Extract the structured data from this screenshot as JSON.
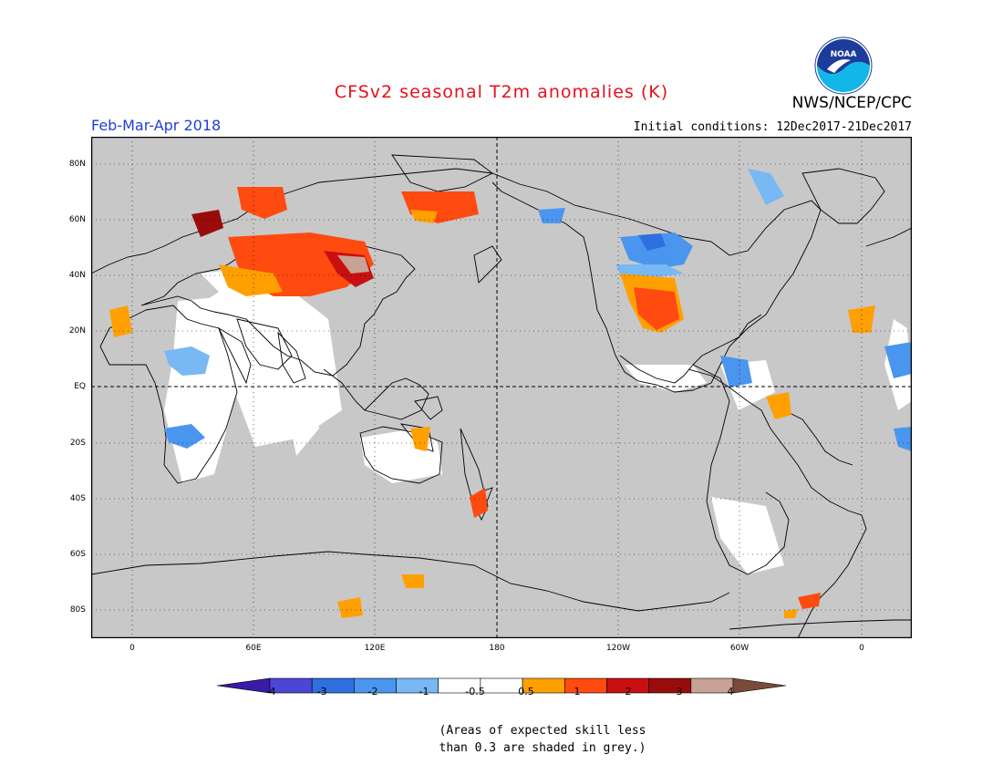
{
  "header": {
    "title": "CFSv2 seasonal T2m anomalies (K)",
    "agency": "NWS/NCEP/CPC",
    "season": "Feb-Mar-Apr 2018",
    "initial_conditions": "Initial conditions: 12Dec2017-21Dec2017",
    "logo_text": "NOAA"
  },
  "map": {
    "ocean_color": "#c8c8c8",
    "lat_labels": [
      "80N",
      "60N",
      "40N",
      "20N",
      "EQ",
      "20S",
      "40S",
      "60S",
      "80S"
    ],
    "lon_labels": [
      "0",
      "60E",
      "120E",
      "180",
      "120W",
      "60W",
      "0"
    ]
  },
  "colorbar": {
    "colors": [
      "#3a1aa8",
      "#4a46d6",
      "#2f6fe0",
      "#4a96ee",
      "#78b8f4",
      "#ffffff",
      "#ffffff",
      "#ffa000",
      "#ff4a10",
      "#c81010",
      "#9a0c0c",
      "#c8a294",
      "#7a4a3a"
    ],
    "labels": [
      "-4",
      "-3",
      "-2",
      "-1",
      "-0.5",
      "0.5",
      "1",
      "2",
      "3",
      "4"
    ]
  },
  "footnote": {
    "line1": "(Areas of expected skill less",
    "line2": "than 0.3 are shaded in grey.)"
  }
}
